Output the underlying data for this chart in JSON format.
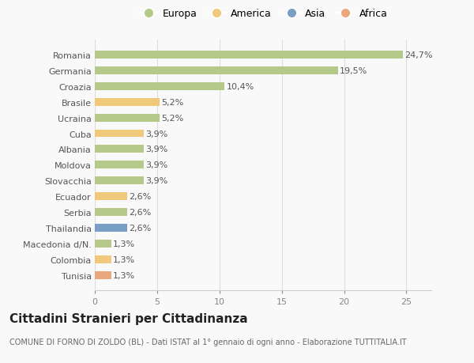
{
  "categories": [
    "Tunisia",
    "Colombia",
    "Macedonia d/N.",
    "Thailandia",
    "Serbia",
    "Ecuador",
    "Slovacchia",
    "Moldova",
    "Albania",
    "Cuba",
    "Ucraina",
    "Brasile",
    "Croazia",
    "Germania",
    "Romania"
  ],
  "values": [
    1.3,
    1.3,
    1.3,
    2.6,
    2.6,
    2.6,
    3.9,
    3.9,
    3.9,
    3.9,
    5.2,
    5.2,
    10.4,
    19.5,
    24.7
  ],
  "labels": [
    "1,3%",
    "1,3%",
    "1,3%",
    "2,6%",
    "2,6%",
    "2,6%",
    "3,9%",
    "3,9%",
    "3,9%",
    "3,9%",
    "5,2%",
    "5,2%",
    "10,4%",
    "19,5%",
    "24,7%"
  ],
  "colors": [
    "#e8a87c",
    "#f0c97a",
    "#b5c98a",
    "#7a9ec5",
    "#b5c98a",
    "#f0c97a",
    "#b5c98a",
    "#b5c98a",
    "#b5c98a",
    "#f0c97a",
    "#b5c98a",
    "#f0c97a",
    "#b5c98a",
    "#b5c98a",
    "#b5c98a"
  ],
  "legend": [
    {
      "label": "Europa",
      "color": "#b5c98a"
    },
    {
      "label": "America",
      "color": "#f0c97a"
    },
    {
      "label": "Asia",
      "color": "#7a9ec5"
    },
    {
      "label": "Africa",
      "color": "#e8a87c"
    }
  ],
  "xlim": [
    0,
    27
  ],
  "xticks": [
    0,
    5,
    10,
    15,
    20,
    25
  ],
  "title": "Cittadini Stranieri per Cittadinanza",
  "subtitle": "COMUNE DI FORNO DI ZOLDO (BL) - Dati ISTAT al 1° gennaio di ogni anno - Elaborazione TUTTITALIA.IT",
  "background_color": "#f9f9f9",
  "bar_height": 0.5,
  "label_fontsize": 8,
  "tick_fontsize": 8,
  "title_fontsize": 11,
  "subtitle_fontsize": 7
}
